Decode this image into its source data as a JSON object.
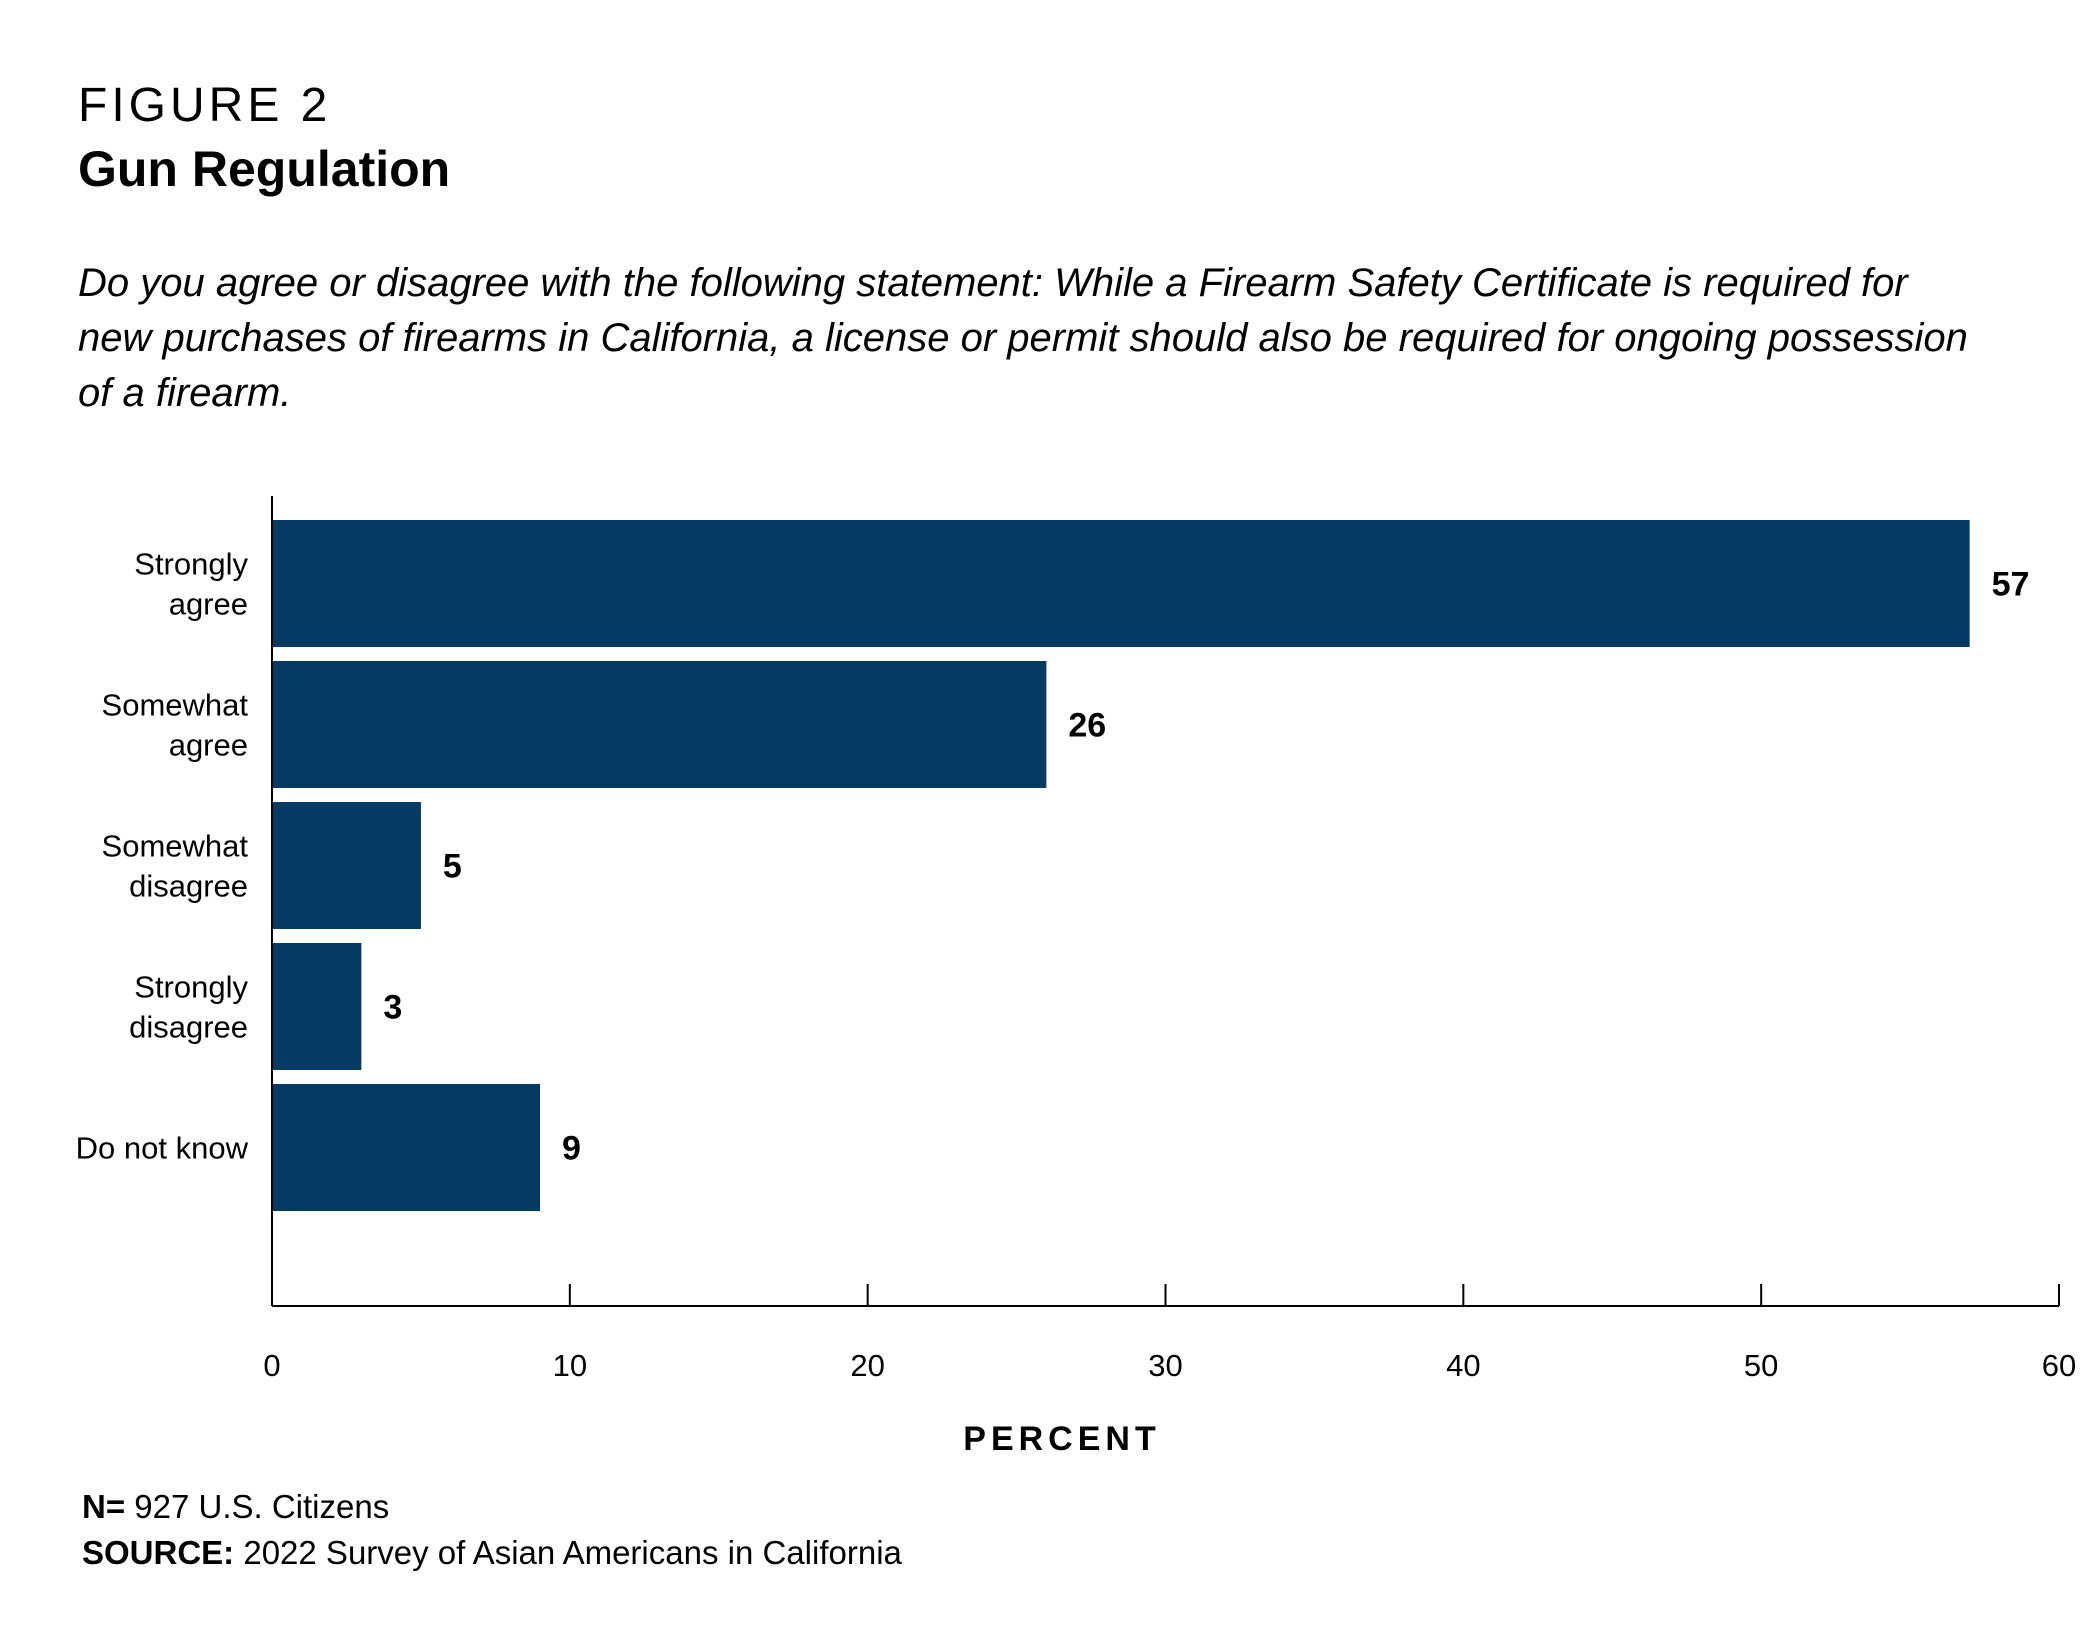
{
  "figure": {
    "label": "FIGURE 2",
    "title": "Gun Regulation",
    "question": "Do you agree or disagree with the following statement: While a Firearm Safety Certificate is required for new purchases of firearms in California, a license or permit should also be required for ongoing possession of a firearm."
  },
  "chart_data": {
    "type": "bar",
    "orientation": "horizontal",
    "categories": [
      [
        "Strongly",
        "agree"
      ],
      [
        "Somewhat",
        "agree"
      ],
      [
        "Somewhat",
        "disagree"
      ],
      [
        "Strongly",
        "disagree"
      ],
      [
        "Do not know"
      ]
    ],
    "values": [
      57,
      26,
      5,
      3,
      9
    ],
    "value_labels": [
      "57",
      "26",
      "5",
      "3",
      "9"
    ],
    "xlabel": "PERCENT",
    "xlim": [
      0,
      60
    ],
    "xticks": [
      0,
      10,
      20,
      30,
      40,
      50,
      60
    ],
    "bar_color": "#053a62",
    "grid": false,
    "legend": "none"
  },
  "notes": {
    "n_label": "N=",
    "n_text": " 927 U.S. Citizens",
    "source_label": "SOURCE:",
    "source_text": " 2022 Survey of Asian Americans in California"
  }
}
